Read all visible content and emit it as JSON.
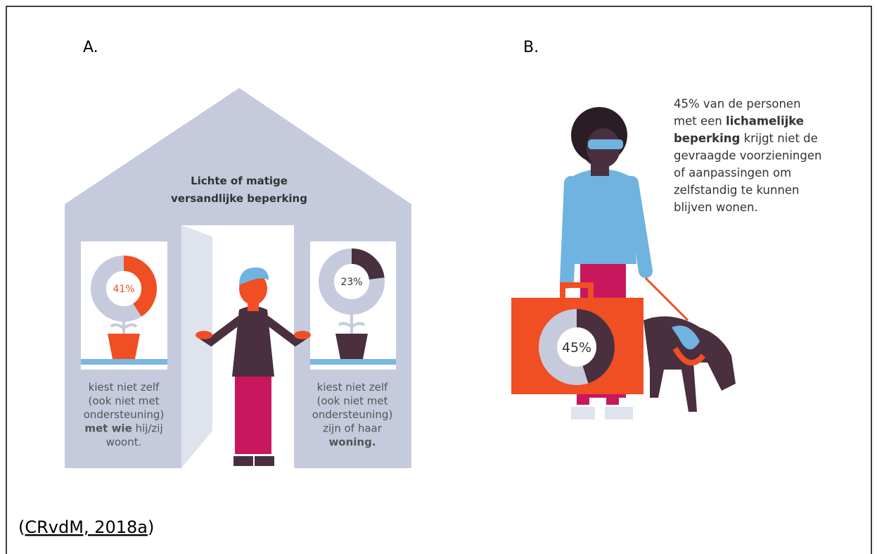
{
  "panel_a": {
    "label": "A.",
    "title_lines": [
      "Lichte of matige",
      "versandlijke beperking"
    ],
    "windows": [
      {
        "value": 41,
        "value_label": "41%",
        "color": "#f04e23",
        "caption": [
          [
            {
              "text": "kiest niet zelf",
              "bold": false
            }
          ],
          [
            {
              "text": "(ook niet met",
              "bold": false
            }
          ],
          [
            {
              "text": "ondersteuning)",
              "bold": false
            }
          ],
          [
            {
              "text": "met wie",
              "bold": true
            },
            {
              "text": " hij/zij",
              "bold": false
            }
          ],
          [
            {
              "text": "woont.",
              "bold": false
            }
          ]
        ]
      },
      {
        "value": 23,
        "value_label": "23%",
        "color": "#4a2f3f",
        "caption": [
          [
            {
              "text": "kiest niet zelf",
              "bold": false
            }
          ],
          [
            {
              "text": "(ook niet met",
              "bold": false
            }
          ],
          [
            {
              "text": "ondersteuning)",
              "bold": false
            }
          ],
          [
            {
              "text": "zijn of haar",
              "bold": false
            }
          ],
          [
            {
              "text": "woning.",
              "bold": true
            }
          ]
        ]
      }
    ]
  },
  "panel_b": {
    "label": "B.",
    "value": 45,
    "value_label": "45%",
    "color": "#4a2f3f",
    "text": [
      [
        {
          "text": "45% van de personen",
          "bold": false
        }
      ],
      [
        {
          "text": "met een ",
          "bold": false
        },
        {
          "text": "lichamelijke",
          "bold": true
        }
      ],
      [
        {
          "text": "beperking",
          "bold": true
        },
        {
          "text": " krijgt niet de",
          "bold": false
        }
      ],
      [
        {
          "text": "gevraagde voorzieningen",
          "bold": false
        }
      ],
      [
        {
          "text": "of aanpassingen om",
          "bold": false
        }
      ],
      [
        {
          "text": "zelfstandig te kunnen",
          "bold": false
        }
      ],
      [
        {
          "text": "blijven wonen.",
          "bold": false
        }
      ]
    ]
  },
  "source": {
    "open": "(",
    "link": "CRvdM, 2018a",
    "close": ")"
  }
}
